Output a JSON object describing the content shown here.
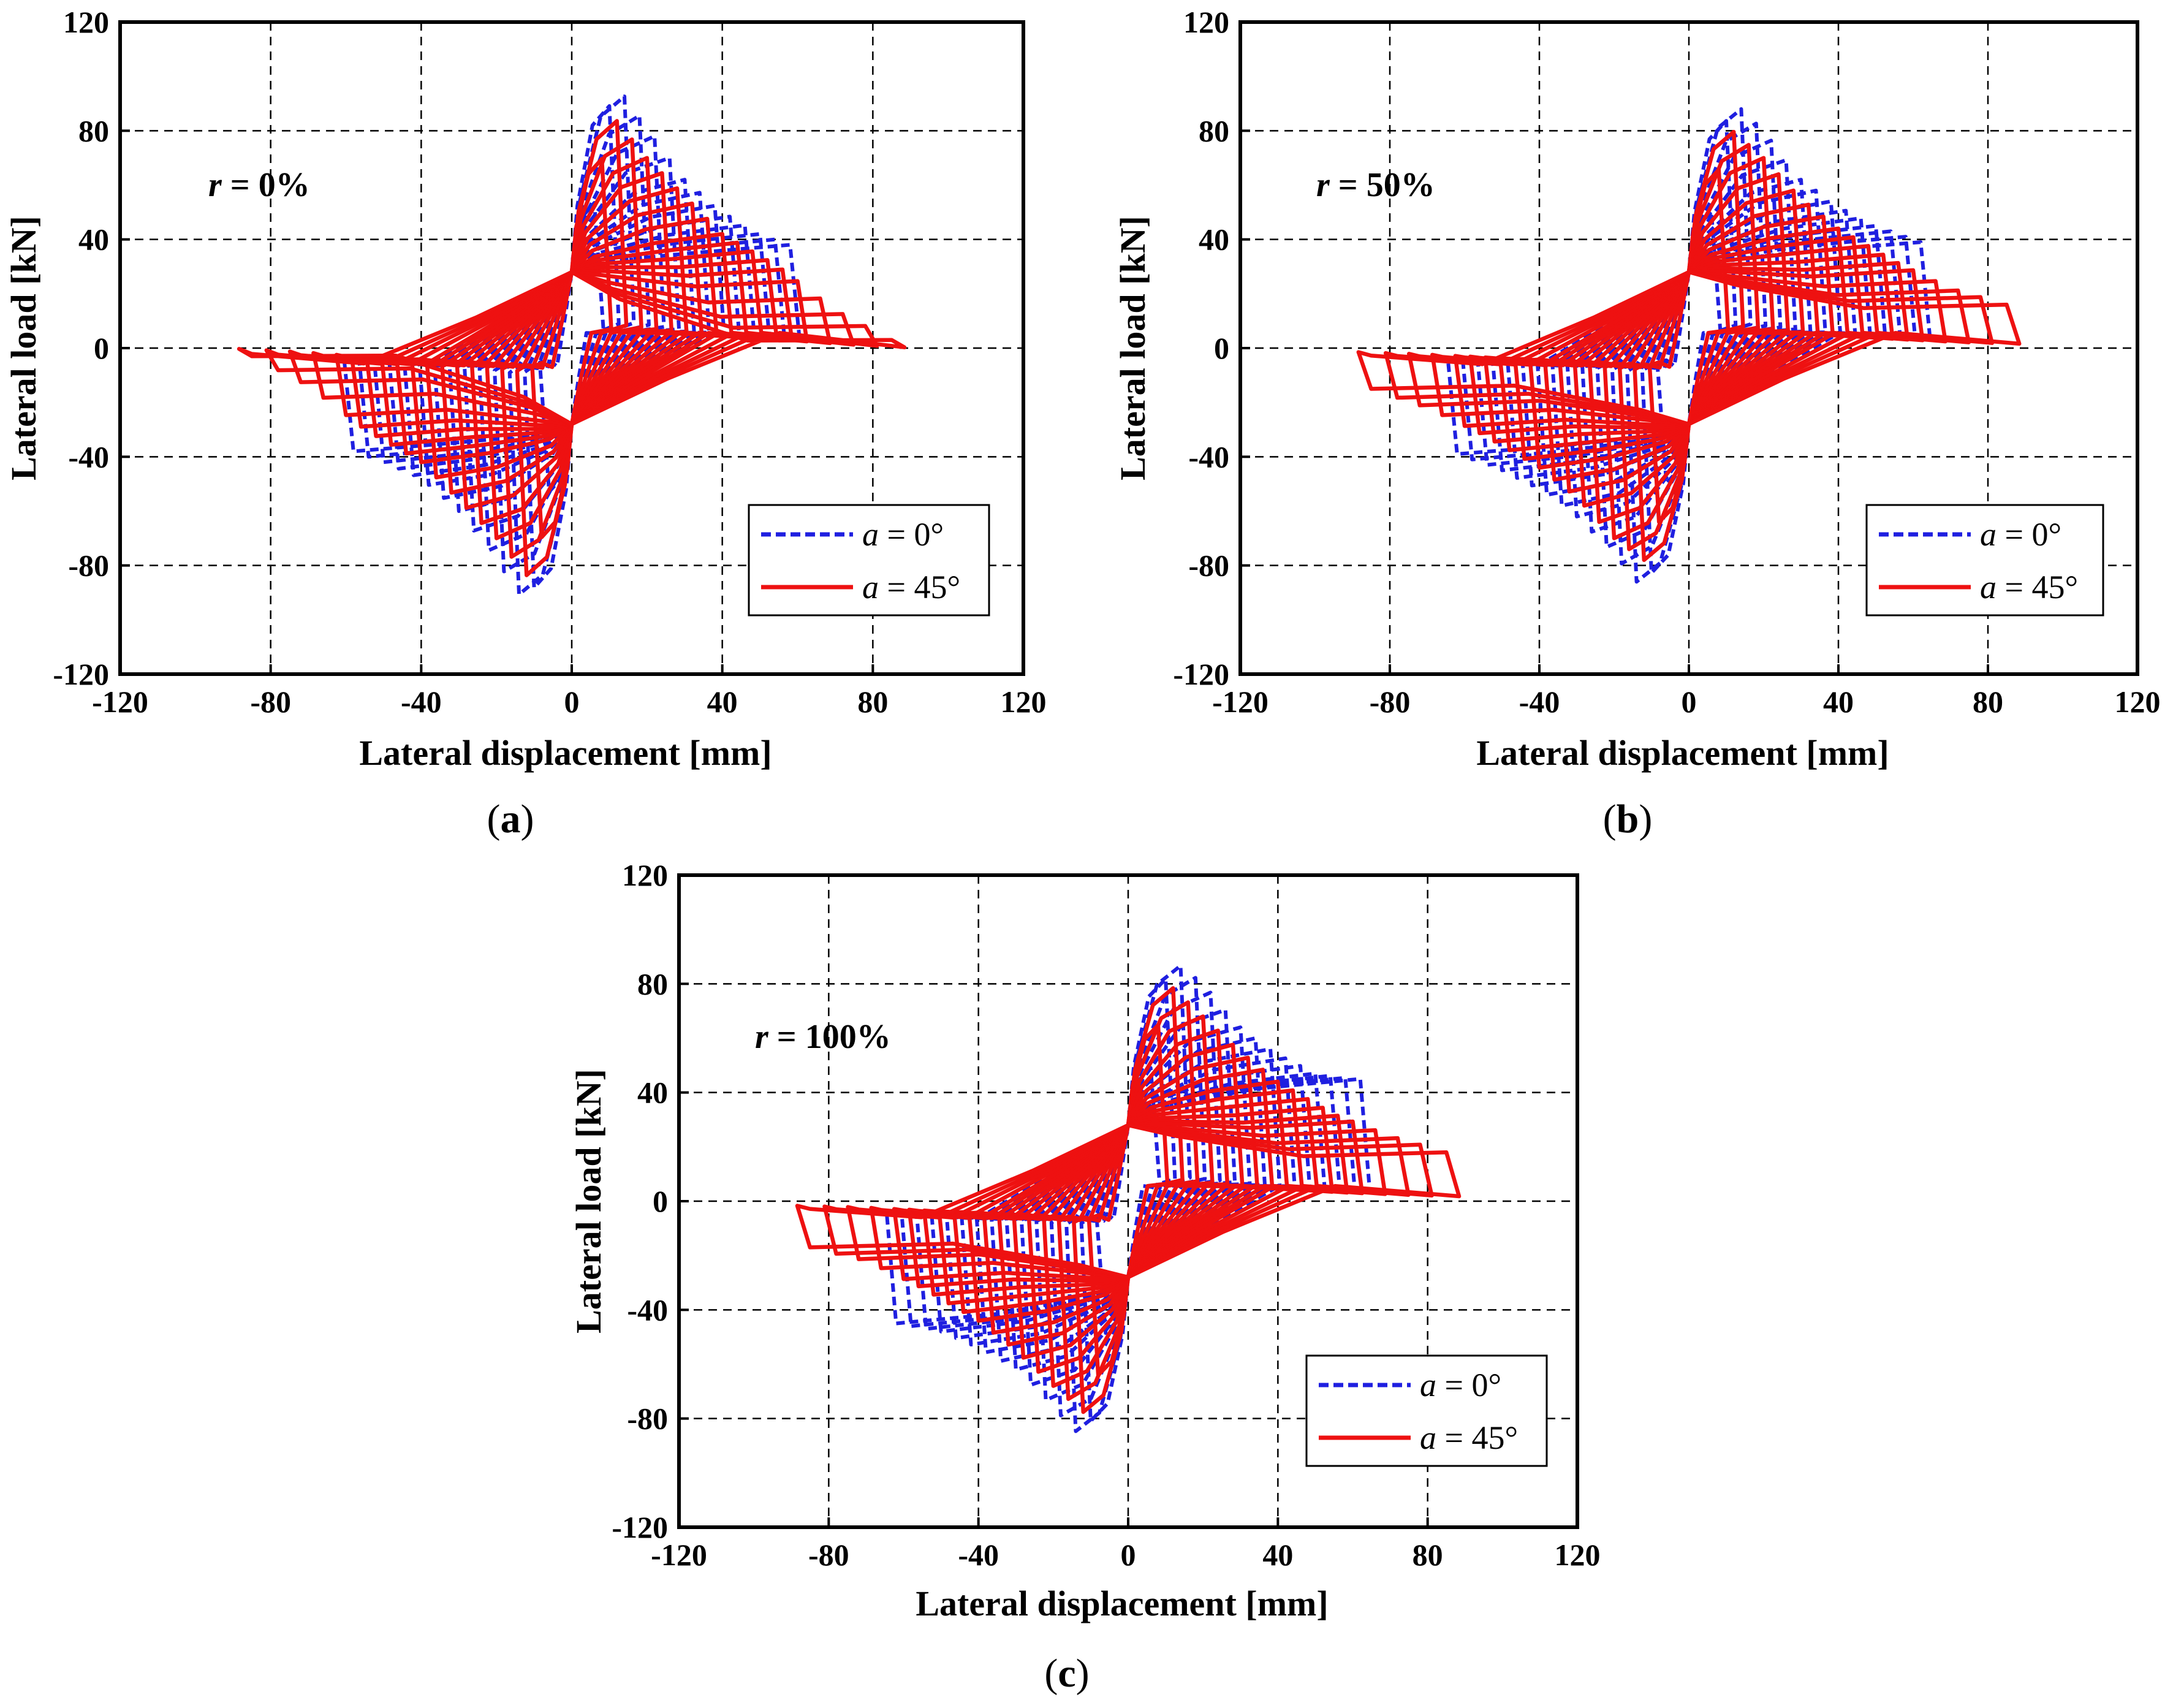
{
  "figure": {
    "panels": [
      {
        "caption_open": "(",
        "caption_letter": "a",
        "caption_close": ")",
        "annotation_var": "r",
        "annotation_rest": " = 0%"
      },
      {
        "caption_open": "(",
        "caption_letter": "b",
        "caption_close": ")",
        "annotation_var": "r",
        "annotation_rest": " = 50%"
      },
      {
        "caption_open": "(",
        "caption_letter": "c",
        "caption_close": ")",
        "annotation_var": "r",
        "annotation_rest": " = 100%"
      }
    ]
  },
  "chart_data": [
    {
      "type": "line",
      "title": "",
      "annotation": "r = 0%",
      "xlabel": "Lateral displacement [mm]",
      "ylabel": "Lateral load [kN]",
      "xlim": [
        -120,
        120
      ],
      "ylim": [
        -120,
        120
      ],
      "xticks": [
        "-120",
        "-80",
        "-40",
        "0",
        "40",
        "80",
        "120"
      ],
      "yticks": [
        "-120",
        "-80",
        "-40",
        "0",
        "40",
        "80",
        "120"
      ],
      "grid": true,
      "legend_position": "bottom-right",
      "legend": [
        {
          "var": "a",
          "text": " =  0°",
          "color": "#1f1fe0",
          "style": "dashed"
        },
        {
          "var": "a",
          "text": " = 45°",
          "color": "#ee1111",
          "style": "solid"
        }
      ],
      "series": [
        {
          "name": "a = 0°",
          "color": "#1f1fe0",
          "style": "dashed",
          "amplitudes": [
            6,
            10,
            14,
            18,
            22,
            26,
            30,
            34,
            38,
            42,
            46,
            50,
            54,
            58
          ],
          "peak_load": 98,
          "envelope_positive": [
            [
              0,
              0
            ],
            [
              11,
              98
            ],
            [
              20,
              82
            ],
            [
              30,
              62
            ],
            [
              40,
              50
            ],
            [
              50,
              42
            ],
            [
              58,
              38
            ]
          ],
          "envelope_negative": [
            [
              0,
              0
            ],
            [
              -11,
              -97
            ],
            [
              -20,
              -78
            ],
            [
              -30,
              -60
            ],
            [
              -40,
              -48
            ],
            [
              -50,
              -42
            ],
            [
              -58,
              -38
            ]
          ]
        },
        {
          "name": "a = 45°",
          "color": "#ee1111",
          "style": "solid",
          "amplitudes": [
            8,
            12,
            16,
            20,
            24,
            28,
            32,
            36,
            40,
            44,
            48,
            52,
            56,
            60,
            66,
            72,
            78,
            85
          ],
          "peak_load": 87,
          "envelope_positive": [
            [
              0,
              0
            ],
            [
              10,
              87
            ],
            [
              20,
              70
            ],
            [
              30,
              56
            ],
            [
              40,
              42
            ],
            [
              55,
              30
            ],
            [
              70,
              14
            ],
            [
              85,
              3
            ]
          ],
          "envelope_negative": [
            [
              0,
              0
            ],
            [
              -10,
              -87
            ],
            [
              -20,
              -70
            ],
            [
              -30,
              -56
            ],
            [
              -40,
              -42
            ],
            [
              -55,
              -30
            ],
            [
              -70,
              -14
            ],
            [
              -85,
              -3
            ]
          ]
        }
      ]
    },
    {
      "type": "line",
      "title": "",
      "annotation": "r = 50%",
      "xlabel": "Lateral displacement [mm]",
      "ylabel": "Lateral load [kN]",
      "xlim": [
        -120,
        120
      ],
      "ylim": [
        -120,
        120
      ],
      "xticks": [
        "-120",
        "-80",
        "-40",
        "0",
        "40",
        "80",
        "120"
      ],
      "yticks": [
        "-120",
        "-80",
        "-40",
        "0",
        "40",
        "80",
        "120"
      ],
      "grid": true,
      "legend_position": "bottom-right",
      "legend": [
        {
          "var": "a",
          "text": " =  0°",
          "color": "#1f1fe0",
          "style": "dashed"
        },
        {
          "var": "a",
          "text": " = 45°",
          "color": "#ee1111",
          "style": "solid"
        }
      ],
      "series": [
        {
          "name": "a = 0°",
          "color": "#1f1fe0",
          "style": "dashed",
          "amplitudes": [
            6,
            10,
            14,
            18,
            22,
            26,
            30,
            34,
            38,
            42,
            46,
            50,
            54,
            58,
            62
          ],
          "peak_load": 92,
          "envelope_positive": [
            [
              0,
              0
            ],
            [
              11,
              92
            ],
            [
              20,
              80
            ],
            [
              30,
              62
            ],
            [
              40,
              52
            ],
            [
              50,
              45
            ],
            [
              62,
              39
            ]
          ],
          "envelope_negative": [
            [
              0,
              0
            ],
            [
              -11,
              -91
            ],
            [
              -20,
              -76
            ],
            [
              -30,
              -62
            ],
            [
              -40,
              -52
            ],
            [
              -50,
              -45
            ],
            [
              -62,
              -39
            ]
          ]
        },
        {
          "name": "a = 45°",
          "color": "#ee1111",
          "style": "solid",
          "amplitudes": [
            8,
            12,
            16,
            20,
            24,
            28,
            32,
            36,
            40,
            44,
            48,
            52,
            56,
            60,
            66,
            72,
            78,
            85
          ],
          "peak_load": 82,
          "envelope_positive": [
            [
              0,
              0
            ],
            [
              10,
              82
            ],
            [
              20,
              70
            ],
            [
              30,
              55
            ],
            [
              40,
              44
            ],
            [
              55,
              32
            ],
            [
              70,
              22
            ],
            [
              85,
              16
            ]
          ],
          "envelope_negative": [
            [
              0,
              0
            ],
            [
              -10,
              -80
            ],
            [
              -20,
              -70
            ],
            [
              -30,
              -55
            ],
            [
              -40,
              -44
            ],
            [
              -55,
              -32
            ],
            [
              -70,
              -22
            ],
            [
              -85,
              -15
            ]
          ]
        }
      ]
    },
    {
      "type": "line",
      "title": "",
      "annotation": "r = 100%",
      "xlabel": "Lateral displacement [mm]",
      "ylabel": "Lateral load [kN]",
      "xlim": [
        -120,
        120
      ],
      "ylim": [
        -120,
        120
      ],
      "xticks": [
        "-120",
        "-80",
        "-40",
        "0",
        "40",
        "80",
        "120"
      ],
      "yticks": [
        "-120",
        "-80",
        "-40",
        "0",
        "40",
        "80",
        "120"
      ],
      "grid": true,
      "legend_position": "bottom-right",
      "legend": [
        {
          "var": "a",
          "text": " =  0°",
          "color": "#1f1fe0",
          "style": "dashed"
        },
        {
          "var": "a",
          "text": " = 45°",
          "color": "#ee1111",
          "style": "solid"
        }
      ],
      "series": [
        {
          "name": "a = 0°",
          "color": "#1f1fe0",
          "style": "dashed",
          "amplitudes": [
            6,
            10,
            14,
            18,
            22,
            26,
            30,
            34,
            38,
            42,
            46,
            50,
            54,
            58,
            62
          ],
          "peak_load": 90,
          "envelope_positive": [
            [
              0,
              0
            ],
            [
              11,
              90
            ],
            [
              20,
              80
            ],
            [
              30,
              64
            ],
            [
              40,
              54
            ],
            [
              50,
              47
            ],
            [
              60,
              45
            ]
          ],
          "envelope_negative": [
            [
              0,
              0
            ],
            [
              -11,
              -89
            ],
            [
              -20,
              -76
            ],
            [
              -30,
              -62
            ],
            [
              -40,
              -54
            ],
            [
              -50,
              -48
            ],
            [
              -62,
              -45
            ]
          ]
        },
        {
          "name": "a = 45°",
          "color": "#ee1111",
          "style": "solid",
          "amplitudes": [
            8,
            12,
            16,
            20,
            24,
            28,
            32,
            36,
            40,
            44,
            48,
            52,
            56,
            60,
            66,
            72,
            78,
            85
          ],
          "peak_load": 81,
          "envelope_positive": [
            [
              0,
              0
            ],
            [
              10,
              81
            ],
            [
              20,
              68
            ],
            [
              30,
              55
            ],
            [
              40,
              44
            ],
            [
              55,
              32
            ],
            [
              70,
              24
            ],
            [
              85,
              18
            ]
          ],
          "envelope_negative": [
            [
              0,
              0
            ],
            [
              -10,
              -80
            ],
            [
              -20,
              -68
            ],
            [
              -30,
              -55
            ],
            [
              -40,
              -44
            ],
            [
              -55,
              -32
            ],
            [
              -70,
              -22
            ],
            [
              -85,
              -17
            ]
          ]
        }
      ]
    }
  ]
}
